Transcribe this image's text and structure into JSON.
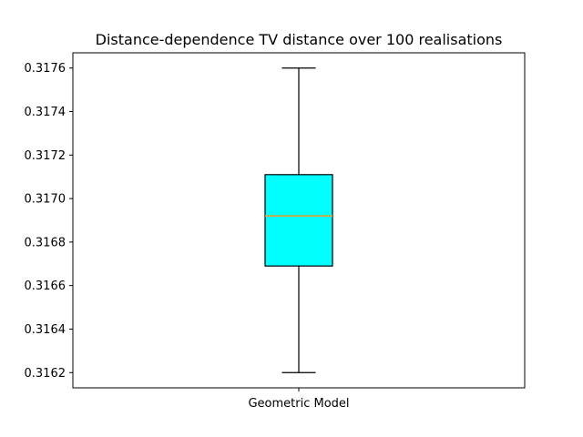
{
  "chart_data": {
    "type": "box",
    "title": "Distance-dependence TV distance over 100 realisations",
    "xlabel": "",
    "ylabel": "",
    "categories": [
      "Geometric Model"
    ],
    "boxes": [
      {
        "label": "Geometric Model",
        "whisker_low": 0.3162,
        "q1": 0.31669,
        "median": 0.31692,
        "q3": 0.31711,
        "whisker_high": 0.3176
      }
    ],
    "ylim": [
      0.31613,
      0.31767
    ],
    "yticks": [
      0.3162,
      0.3164,
      0.3166,
      0.3168,
      0.317,
      0.3172,
      0.3174,
      0.3176
    ],
    "ytick_labels": [
      "0.3162",
      "0.3164",
      "0.3166",
      "0.3168",
      "0.3170",
      "0.3172",
      "0.3174",
      "0.3176"
    ],
    "grid": false,
    "colors": {
      "box_fill": "#00ffff",
      "median_line": "#e0a030",
      "lines": "#000000"
    }
  }
}
